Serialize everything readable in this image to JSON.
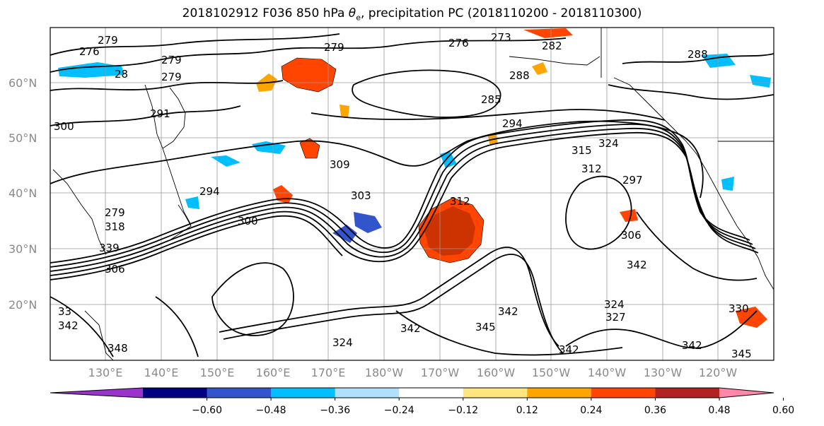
{
  "title": {
    "prefix": "2018102912 F036 850 hPa ",
    "theta": "θ",
    "theta_sub": "e",
    "suffix": ", precipitation PC (2018110200 - 2018110300)"
  },
  "lat_labels": [
    "60°N",
    "50°N",
    "40°N",
    "30°N",
    "20°N"
  ],
  "lon_labels": [
    "130°E",
    "140°E",
    "150°E",
    "160°E",
    "170°E",
    "180°W",
    "170°W",
    "160°W",
    "150°W",
    "140°W",
    "130°W",
    "120°W"
  ],
  "contour_labels": [
    "276",
    "279",
    "279",
    "28",
    "279",
    "279",
    "276",
    "273",
    "282",
    "288",
    "285",
    "288",
    "291",
    "294",
    "300",
    "309",
    "303",
    "312",
    "315",
    "324",
    "312",
    "297",
    "294",
    "279",
    "318",
    "300",
    "339",
    "306",
    "306",
    "342",
    "324",
    "342",
    "345",
    "342",
    "342",
    "342",
    "345",
    "324",
    "327",
    "330",
    "342",
    "33",
    "348"
  ],
  "colorbar": {
    "colors": [
      "#9933cc",
      "#000080",
      "#3355cc",
      "#00bfff",
      "#b0e0ff",
      "#ffffff",
      "#ffe680",
      "#ffa500",
      "#ff4500",
      "#b22222",
      "#ff88aa"
    ],
    "ticks": [
      "−0.60",
      "−0.48",
      "−0.36",
      "−0.24",
      "−0.12",
      "0.12",
      "0.24",
      "0.36",
      "0.48",
      "0.60"
    ]
  },
  "precip_colors": {
    "negative_light": "#00bfff",
    "negative_dark": "#3355cc",
    "positive_light": "#ffa500",
    "positive_mid": "#ff4500",
    "positive_dark": "#b22222",
    "positive_pale": "#ffe680"
  }
}
